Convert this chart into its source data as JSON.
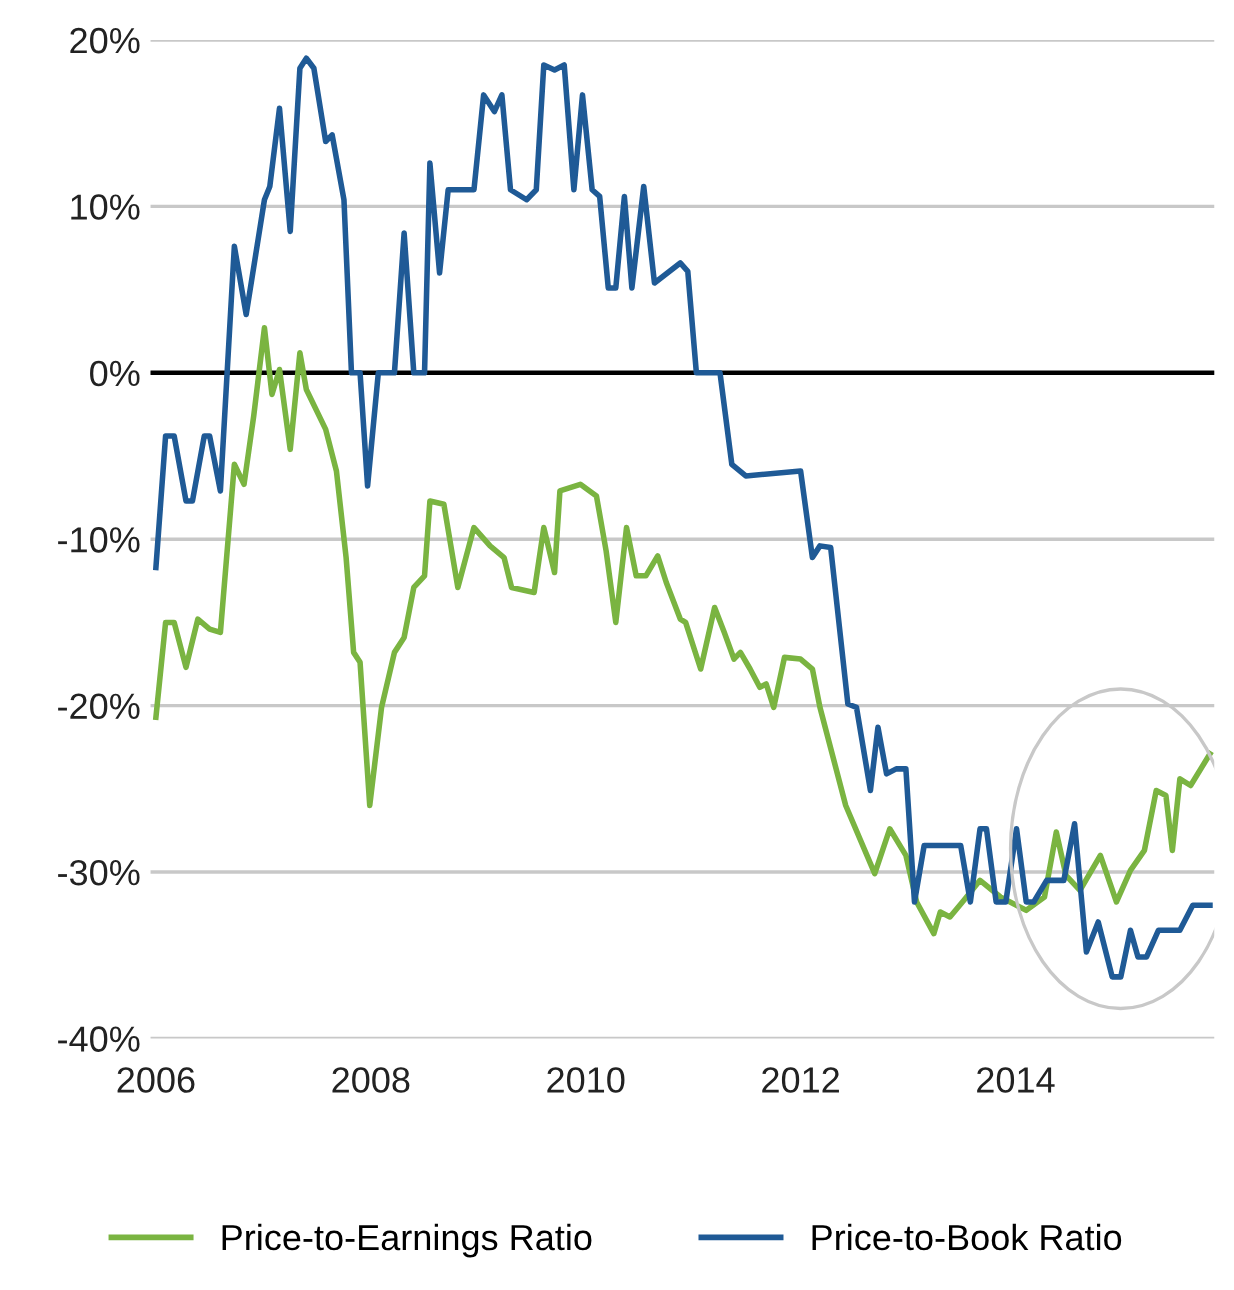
{
  "chart_data": {
    "type": "line",
    "xlim": [
      2005.95,
      2015.85
    ],
    "xticks": [
      2006,
      2008,
      2010,
      2012,
      2014
    ],
    "ylim": [
      -40,
      20
    ],
    "yticks": [
      {
        "value": 20,
        "label": "20%"
      },
      {
        "value": 10,
        "label": "10%"
      },
      {
        "value": 0,
        "label": "0%"
      },
      {
        "value": -10,
        "label": "-10%"
      },
      {
        "value": -20,
        "label": "-20%"
      },
      {
        "value": -30,
        "label": "-30%"
      },
      {
        "value": -40,
        "label": "-40%"
      }
    ],
    "grid": "y",
    "legend": "bottom",
    "line_style": "solid",
    "ref_lines": [
      {
        "axis": "y",
        "value": 0,
        "color": "#000000"
      }
    ],
    "series": [
      {
        "name": "Price-to-Earnings Ratio",
        "color": "#7ab441",
        "x": [
          2006.0,
          2006.09,
          2006.17,
          2006.28,
          2006.39,
          2006.5,
          2006.6,
          2006.73,
          2006.82,
          2006.91,
          2007.01,
          2007.08,
          2007.15,
          2007.25,
          2007.34,
          2007.4,
          2007.58,
          2007.68,
          2007.77,
          2007.84,
          2007.9,
          2007.99,
          2008.1,
          2008.22,
          2008.31,
          2008.4,
          2008.5,
          2008.55,
          2008.68,
          2008.81,
          2008.96,
          2009.11,
          2009.24,
          2009.31,
          2009.52,
          2009.61,
          2009.71,
          2009.76,
          2009.95,
          2010.1,
          2010.19,
          2010.28,
          2010.38,
          2010.47,
          2010.56,
          2010.67,
          2010.75,
          2010.88,
          2010.93,
          2011.07,
          2011.2,
          2011.29,
          2011.38,
          2011.44,
          2011.53,
          2011.62,
          2011.68,
          2011.75,
          2011.85,
          2012.0,
          2012.11,
          2012.18,
          2012.42,
          2012.69,
          2012.83,
          2012.98,
          2013.08,
          2013.24,
          2013.3,
          2013.39,
          2013.52,
          2013.67,
          2013.86,
          2014.1,
          2014.27,
          2014.38,
          2014.47,
          2014.6,
          2014.79,
          2014.94,
          2015.07,
          2015.2,
          2015.31,
          2015.4,
          2015.46,
          2015.53,
          2015.63,
          2015.81
        ],
        "values": [
          -20.7,
          -15.0,
          -15.0,
          -17.7,
          -14.8,
          -15.4,
          -15.6,
          -5.5,
          -6.7,
          -2.6,
          2.7,
          -1.3,
          0.2,
          -4.6,
          1.2,
          -1.0,
          -3.4,
          -5.9,
          -11.1,
          -16.8,
          -17.4,
          -26.0,
          -20.1,
          -16.8,
          -15.9,
          -12.9,
          -12.2,
          -7.7,
          -7.9,
          -12.9,
          -9.3,
          -10.4,
          -11.1,
          -12.9,
          -13.2,
          -9.3,
          -12.0,
          -7.1,
          -6.7,
          -7.4,
          -10.7,
          -15.0,
          -9.3,
          -12.2,
          -12.2,
          -11.0,
          -12.6,
          -14.8,
          -15.0,
          -17.8,
          -14.1,
          -15.6,
          -17.2,
          -16.8,
          -17.8,
          -18.9,
          -18.7,
          -20.1,
          -17.1,
          -17.2,
          -17.8,
          -20.1,
          -26.0,
          -30.1,
          -27.4,
          -29.0,
          -31.8,
          -33.7,
          -32.4,
          -32.7,
          -31.7,
          -30.5,
          -31.5,
          -32.3,
          -31.5,
          -27.6,
          -30.2,
          -31.1,
          -29.0,
          -31.8,
          -29.9,
          -28.7,
          -25.1,
          -25.4,
          -28.7,
          -24.4,
          -24.8,
          -22.9
        ]
      },
      {
        "name": "Price-to-Book Ratio",
        "color": "#1f5a96",
        "x": [
          2006.0,
          2006.09,
          2006.17,
          2006.28,
          2006.34,
          2006.45,
          2006.5,
          2006.6,
          2006.73,
          2006.84,
          2007.01,
          2007.06,
          2007.15,
          2007.25,
          2007.34,
          2007.4,
          2007.47,
          2007.58,
          2007.64,
          2007.75,
          2007.82,
          2007.9,
          2007.97,
          2008.07,
          2008.22,
          2008.31,
          2008.4,
          2008.5,
          2008.55,
          2008.64,
          2008.72,
          2008.96,
          2009.05,
          2009.15,
          2009.22,
          2009.3,
          2009.45,
          2009.54,
          2009.61,
          2009.71,
          2009.8,
          2009.89,
          2009.97,
          2010.06,
          2010.13,
          2010.21,
          2010.28,
          2010.36,
          2010.43,
          2010.54,
          2010.64,
          2010.88,
          2010.95,
          2011.03,
          2011.25,
          2011.36,
          2011.49,
          2012.0,
          2012.11,
          2012.18,
          2012.28,
          2012.44,
          2012.52,
          2012.65,
          2012.72,
          2012.8,
          2012.89,
          2012.98,
          2013.06,
          2013.15,
          2013.49,
          2013.58,
          2013.67,
          2013.73,
          2013.82,
          2013.91,
          2014.01,
          2014.1,
          2014.17,
          2014.29,
          2014.45,
          2014.55,
          2014.66,
          2014.77,
          2014.9,
          2014.98,
          2015.07,
          2015.14,
          2015.22,
          2015.33,
          2015.53,
          2015.65,
          2015.81
        ],
        "values": [
          -11.7,
          -3.8,
          -3.8,
          -7.7,
          -7.7,
          -3.8,
          -3.8,
          -7.1,
          7.6,
          3.5,
          10.4,
          11.2,
          15.9,
          8.5,
          18.3,
          18.9,
          18.3,
          13.9,
          14.3,
          10.4,
          0,
          0,
          -6.8,
          0,
          0,
          8.4,
          0,
          0,
          12.6,
          6.0,
          11,
          11,
          16.7,
          15.7,
          16.7,
          11,
          10.4,
          11,
          18.5,
          18.2,
          18.5,
          11,
          16.7,
          11,
          10.6,
          5.1,
          5.1,
          10.6,
          5.1,
          11.2,
          5.4,
          6.6,
          6.1,
          0,
          0,
          -5.5,
          -6.2,
          -5.9,
          -11.1,
          -10.4,
          -10.5,
          -19.9,
          -20.1,
          -25.1,
          -21.3,
          -24.1,
          -23.8,
          -23.8,
          -31.8,
          -28.4,
          -28.4,
          -31.8,
          -27.4,
          -27.4,
          -31.8,
          -31.8,
          -27.4,
          -31.8,
          -31.8,
          -30.5,
          -30.5,
          -27.1,
          -34.8,
          -33.0,
          -36.3,
          -36.3,
          -33.5,
          -35.1,
          -35.1,
          -33.5,
          -33.5,
          -32.0,
          -32.0
        ]
      }
    ]
  }
}
